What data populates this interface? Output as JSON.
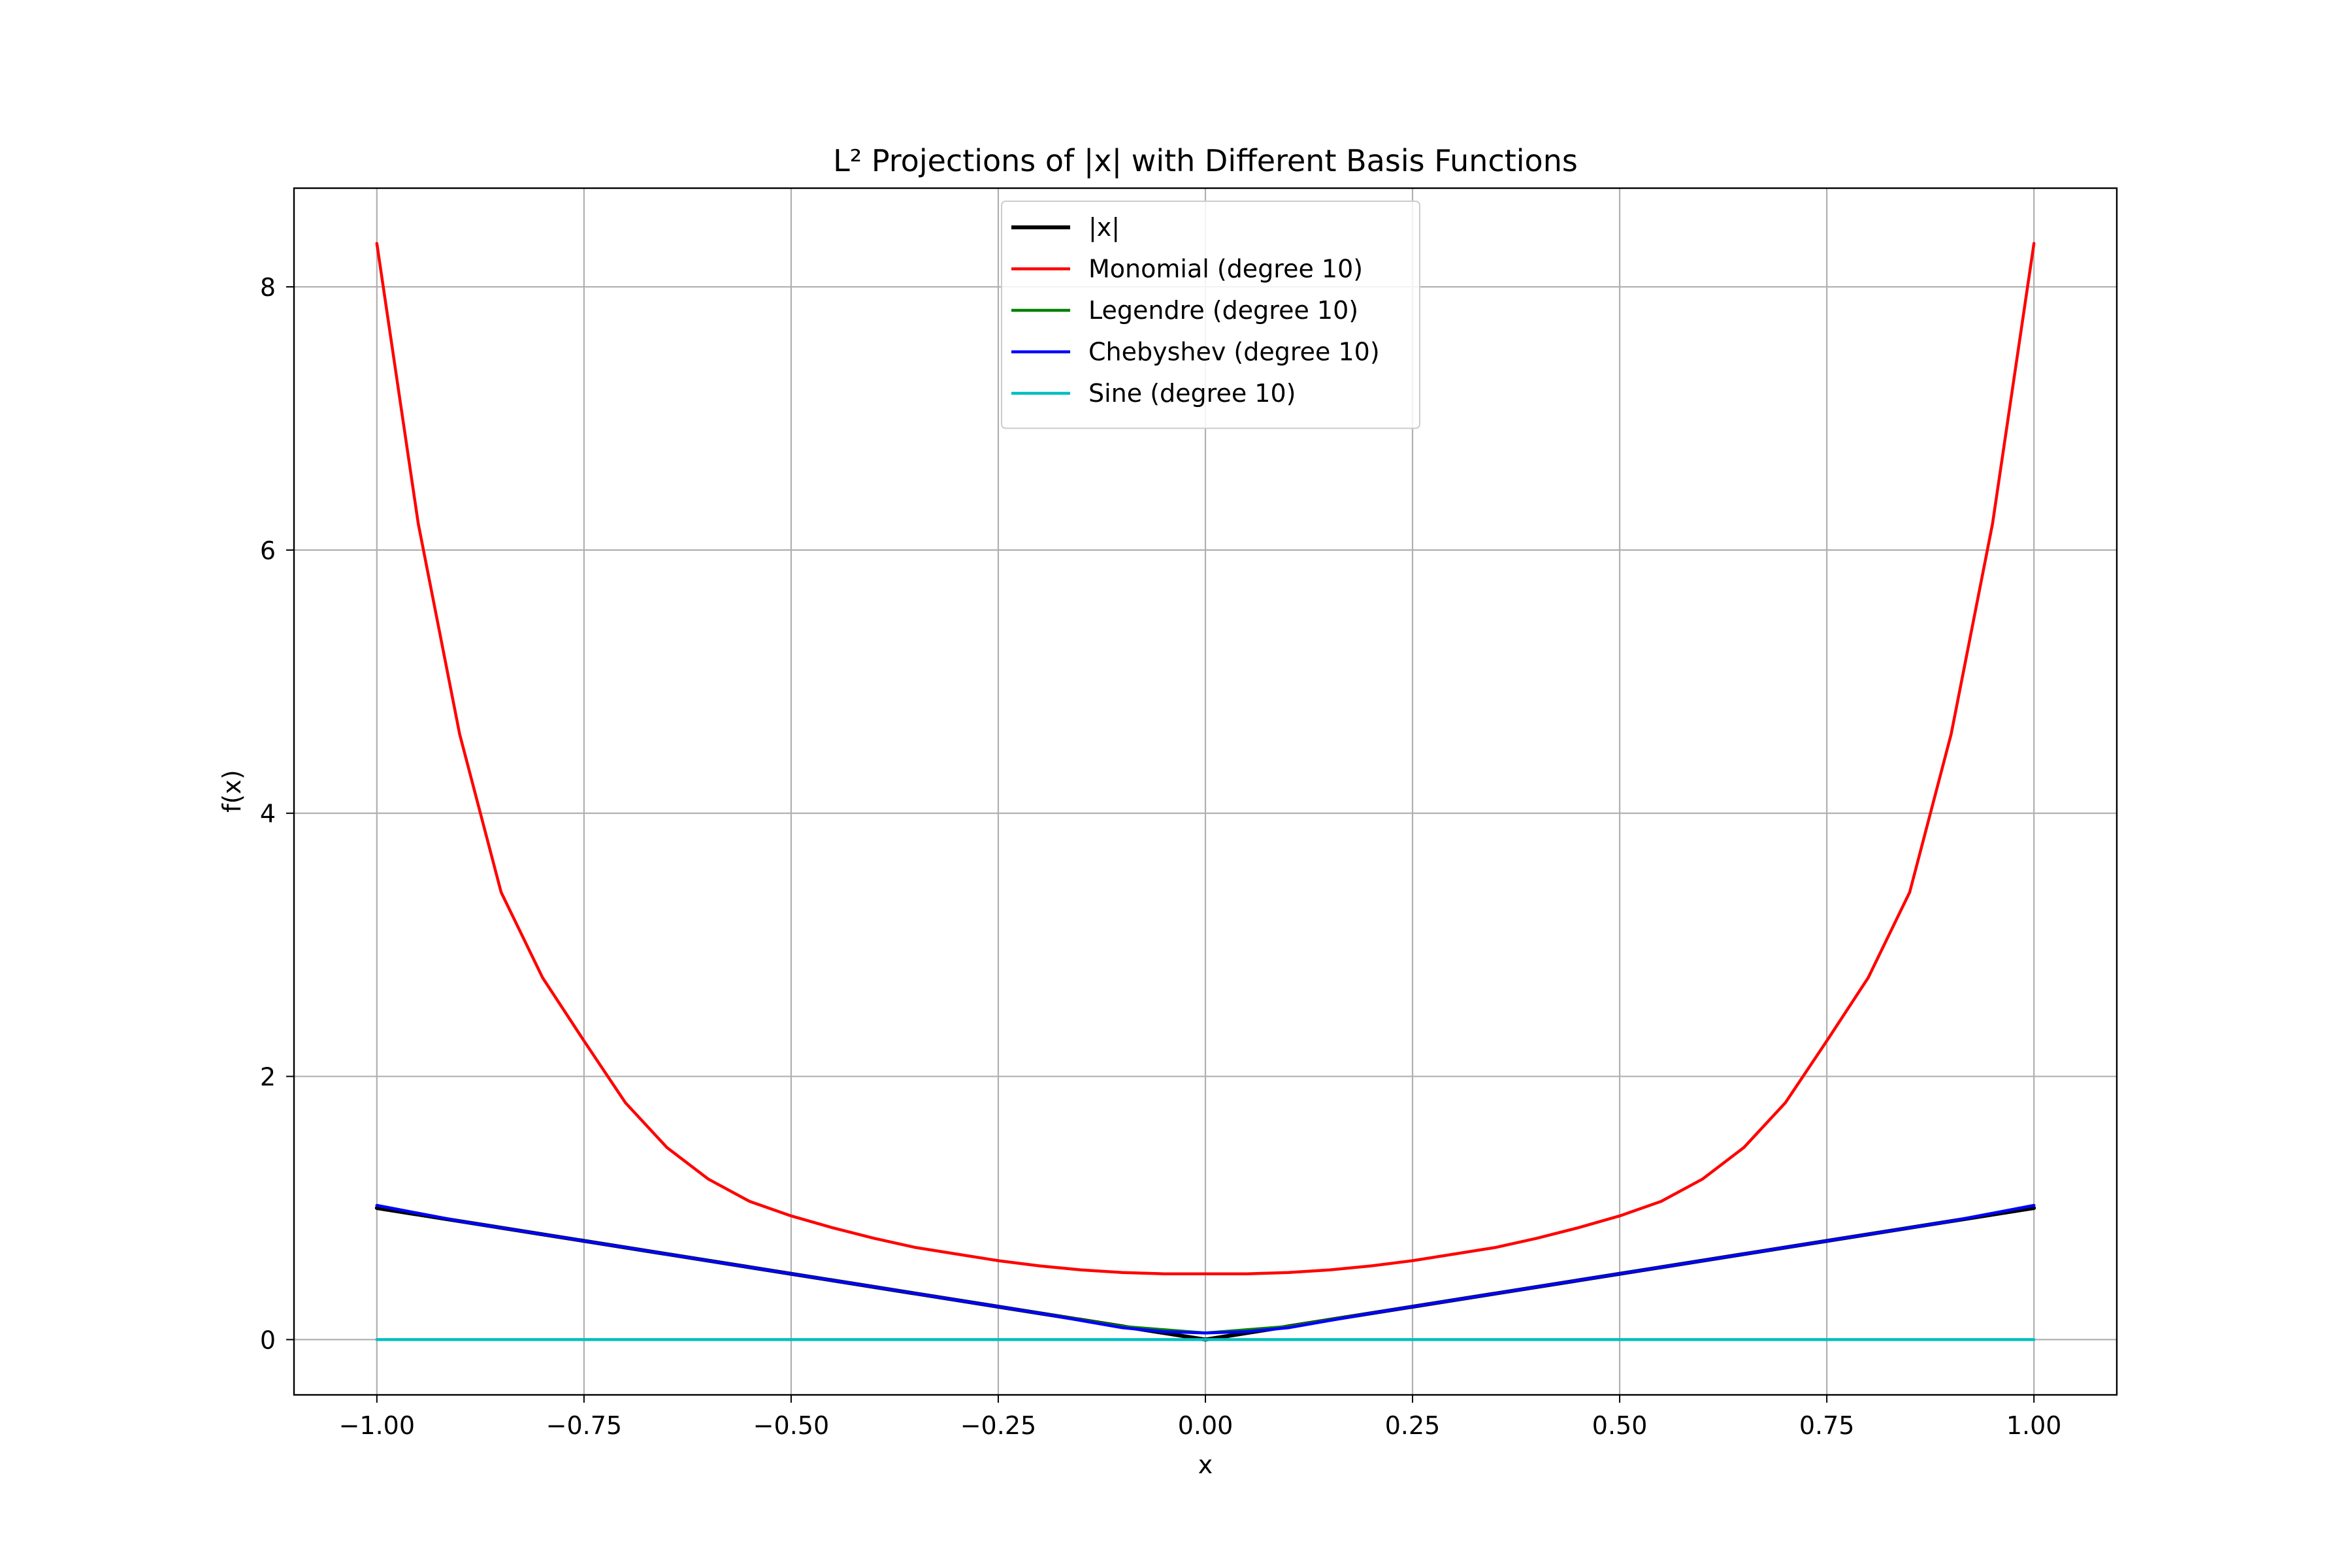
{
  "chart_data": {
    "type": "line",
    "title": "L² Projections of |x| with Different Basis Functions",
    "xlabel": "x",
    "ylabel": "f(x)",
    "xlim": [
      -1.1,
      1.1
    ],
    "ylim": [
      -0.42,
      8.75
    ],
    "x_ticks": [
      -1.0,
      -0.75,
      -0.5,
      -0.25,
      0.0,
      0.25,
      0.5,
      0.75,
      1.0
    ],
    "x_tick_labels": [
      "−1.00",
      "−0.75",
      "−0.50",
      "−0.25",
      "0.00",
      "0.25",
      "0.50",
      "0.75",
      "1.00"
    ],
    "y_ticks": [
      0,
      2,
      4,
      6,
      8
    ],
    "y_tick_labels": [
      "0",
      "2",
      "4",
      "6",
      "8"
    ],
    "grid": true,
    "legend_position": "upper center",
    "series": [
      {
        "name": "|x|",
        "color": "#000000",
        "x": [
          -1.0,
          0.0,
          1.0
        ],
        "y": [
          1.0,
          0.0,
          1.0
        ]
      },
      {
        "name": "Monomial (degree 10)",
        "color": "#ff0000",
        "x": [
          -1.0,
          -0.95,
          -0.9,
          -0.85,
          -0.8,
          -0.75,
          -0.7,
          -0.65,
          -0.6,
          -0.55,
          -0.5,
          -0.45,
          -0.4,
          -0.35,
          -0.3,
          -0.25,
          -0.2,
          -0.15,
          -0.1,
          -0.05,
          0.0,
          0.05,
          0.1,
          0.15,
          0.2,
          0.25,
          0.3,
          0.35,
          0.4,
          0.45,
          0.5,
          0.55,
          0.6,
          0.65,
          0.7,
          0.75,
          0.8,
          0.85,
          0.9,
          0.95,
          1.0
        ],
        "y": [
          8.33,
          6.2,
          4.6,
          3.4,
          2.75,
          2.27,
          1.8,
          1.46,
          1.22,
          1.05,
          0.94,
          0.85,
          0.77,
          0.7,
          0.65,
          0.6,
          0.56,
          0.53,
          0.51,
          0.5,
          0.5,
          0.5,
          0.51,
          0.53,
          0.56,
          0.6,
          0.65,
          0.7,
          0.77,
          0.85,
          0.94,
          1.05,
          1.22,
          1.46,
          1.8,
          2.27,
          2.75,
          3.4,
          4.6,
          6.2,
          8.33
        ]
      },
      {
        "name": "Legendre (degree 10)",
        "color": "#008000",
        "x": [
          -1.0,
          -0.9,
          -0.8,
          -0.7,
          -0.6,
          -0.5,
          -0.4,
          -0.3,
          -0.2,
          -0.1,
          0.0,
          0.1,
          0.2,
          0.3,
          0.4,
          0.5,
          0.6,
          0.7,
          0.8,
          0.9,
          1.0
        ],
        "y": [
          1.02,
          0.9,
          0.8,
          0.7,
          0.6,
          0.5,
          0.4,
          0.3,
          0.2,
          0.1,
          0.05,
          0.1,
          0.2,
          0.3,
          0.4,
          0.5,
          0.6,
          0.7,
          0.8,
          0.9,
          1.02
        ]
      },
      {
        "name": "Chebyshev (degree 10)",
        "color": "#0000ff",
        "x": [
          -1.0,
          -0.9,
          -0.8,
          -0.7,
          -0.6,
          -0.5,
          -0.4,
          -0.3,
          -0.2,
          -0.1,
          -0.05,
          0.0,
          0.05,
          0.1,
          0.2,
          0.3,
          0.4,
          0.5,
          0.6,
          0.7,
          0.8,
          0.9,
          1.0
        ],
        "y": [
          1.02,
          0.9,
          0.8,
          0.7,
          0.6,
          0.5,
          0.4,
          0.3,
          0.2,
          0.09,
          0.06,
          0.05,
          0.06,
          0.09,
          0.2,
          0.3,
          0.4,
          0.5,
          0.6,
          0.7,
          0.8,
          0.9,
          1.02
        ]
      },
      {
        "name": "Sine (degree 10)",
        "color": "#00bfbf",
        "x": [
          -1.0,
          0.0,
          1.0
        ],
        "y": [
          0.0,
          0.0,
          0.0
        ]
      }
    ]
  }
}
